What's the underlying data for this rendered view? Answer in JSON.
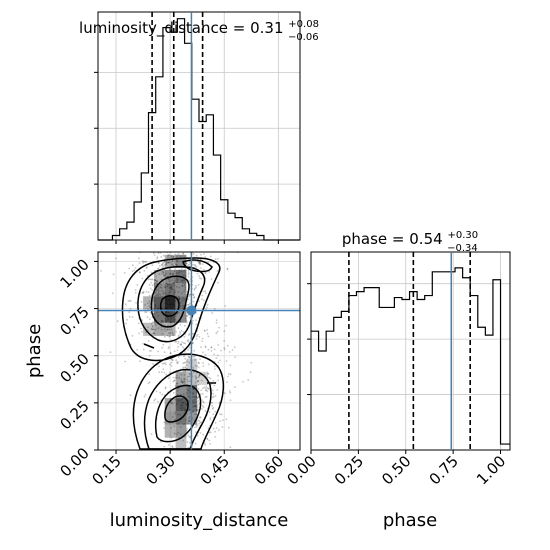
{
  "chart_data": [
    {
      "type": "histogram",
      "panel": "top-left",
      "title_prefix": "luminosity_distance = 0.31",
      "title_sup": "+0.08",
      "title_sub": "−0.06",
      "xlim": [
        0.1,
        0.66
      ],
      "ylim": [
        0,
        1.02
      ],
      "grid": true,
      "bins": [
        0.1,
        0.12,
        0.14,
        0.16,
        0.18,
        0.2,
        0.22,
        0.24,
        0.26,
        0.28,
        0.3,
        0.32,
        0.34,
        0.36,
        0.38,
        0.4,
        0.42,
        0.44,
        0.46,
        0.48,
        0.5,
        0.52,
        0.54,
        0.56,
        0.58,
        0.6,
        0.62,
        0.64,
        0.66
      ],
      "counts": [
        0.0,
        0.0,
        0.02,
        0.05,
        0.08,
        0.17,
        0.3,
        0.57,
        0.73,
        0.95,
        0.93,
        0.99,
        0.88,
        0.63,
        0.53,
        0.56,
        0.38,
        0.18,
        0.12,
        0.1,
        0.05,
        0.03,
        0.02,
        0.0,
        0.0,
        0.0,
        0.0,
        0.0
      ],
      "quantiles": [
        0.25,
        0.31,
        0.39
      ],
      "truth": 0.359
    },
    {
      "type": "histogram",
      "panel": "bottom-right",
      "title_prefix": "phase = 0.54",
      "title_sup": "+0.30",
      "title_sub": "−0.34",
      "xlim": [
        0,
        1.05
      ],
      "ylim": [
        0,
        1.0
      ],
      "xticks": [
        "0.00",
        "0.25",
        "0.50",
        "0.75",
        "1.00"
      ],
      "xlabel": "phase",
      "grid": true,
      "bins": [
        0.0,
        0.04,
        0.08,
        0.12,
        0.16,
        0.2,
        0.24,
        0.28,
        0.32,
        0.36,
        0.4,
        0.44,
        0.48,
        0.52,
        0.56,
        0.6,
        0.64,
        0.68,
        0.72,
        0.76,
        0.8,
        0.84,
        0.88,
        0.92,
        0.96,
        1.0,
        1.05
      ],
      "counts": [
        0.6,
        0.5,
        0.6,
        0.67,
        0.7,
        0.78,
        0.8,
        0.82,
        0.82,
        0.72,
        0.72,
        0.77,
        0.76,
        0.8,
        0.76,
        0.78,
        0.9,
        0.9,
        0.9,
        0.92,
        0.87,
        0.78,
        0.62,
        0.58,
        0.86,
        0.03
      ],
      "quantiles": [
        0.2,
        0.54,
        0.84
      ],
      "truth": 0.74
    },
    {
      "type": "heatmap",
      "panel": "bottom-left",
      "xlim": [
        0.1,
        0.66
      ],
      "ylim": [
        0,
        1.05
      ],
      "xticks": [
        "0.15",
        "0.30",
        "0.45",
        "0.60"
      ],
      "yticks": [
        "0.00",
        "0.25",
        "0.50",
        "0.75",
        "1.00"
      ],
      "xlabel": "luminosity_distance",
      "ylabel": "phase",
      "truth": [
        0.359,
        0.74
      ]
    }
  ]
}
